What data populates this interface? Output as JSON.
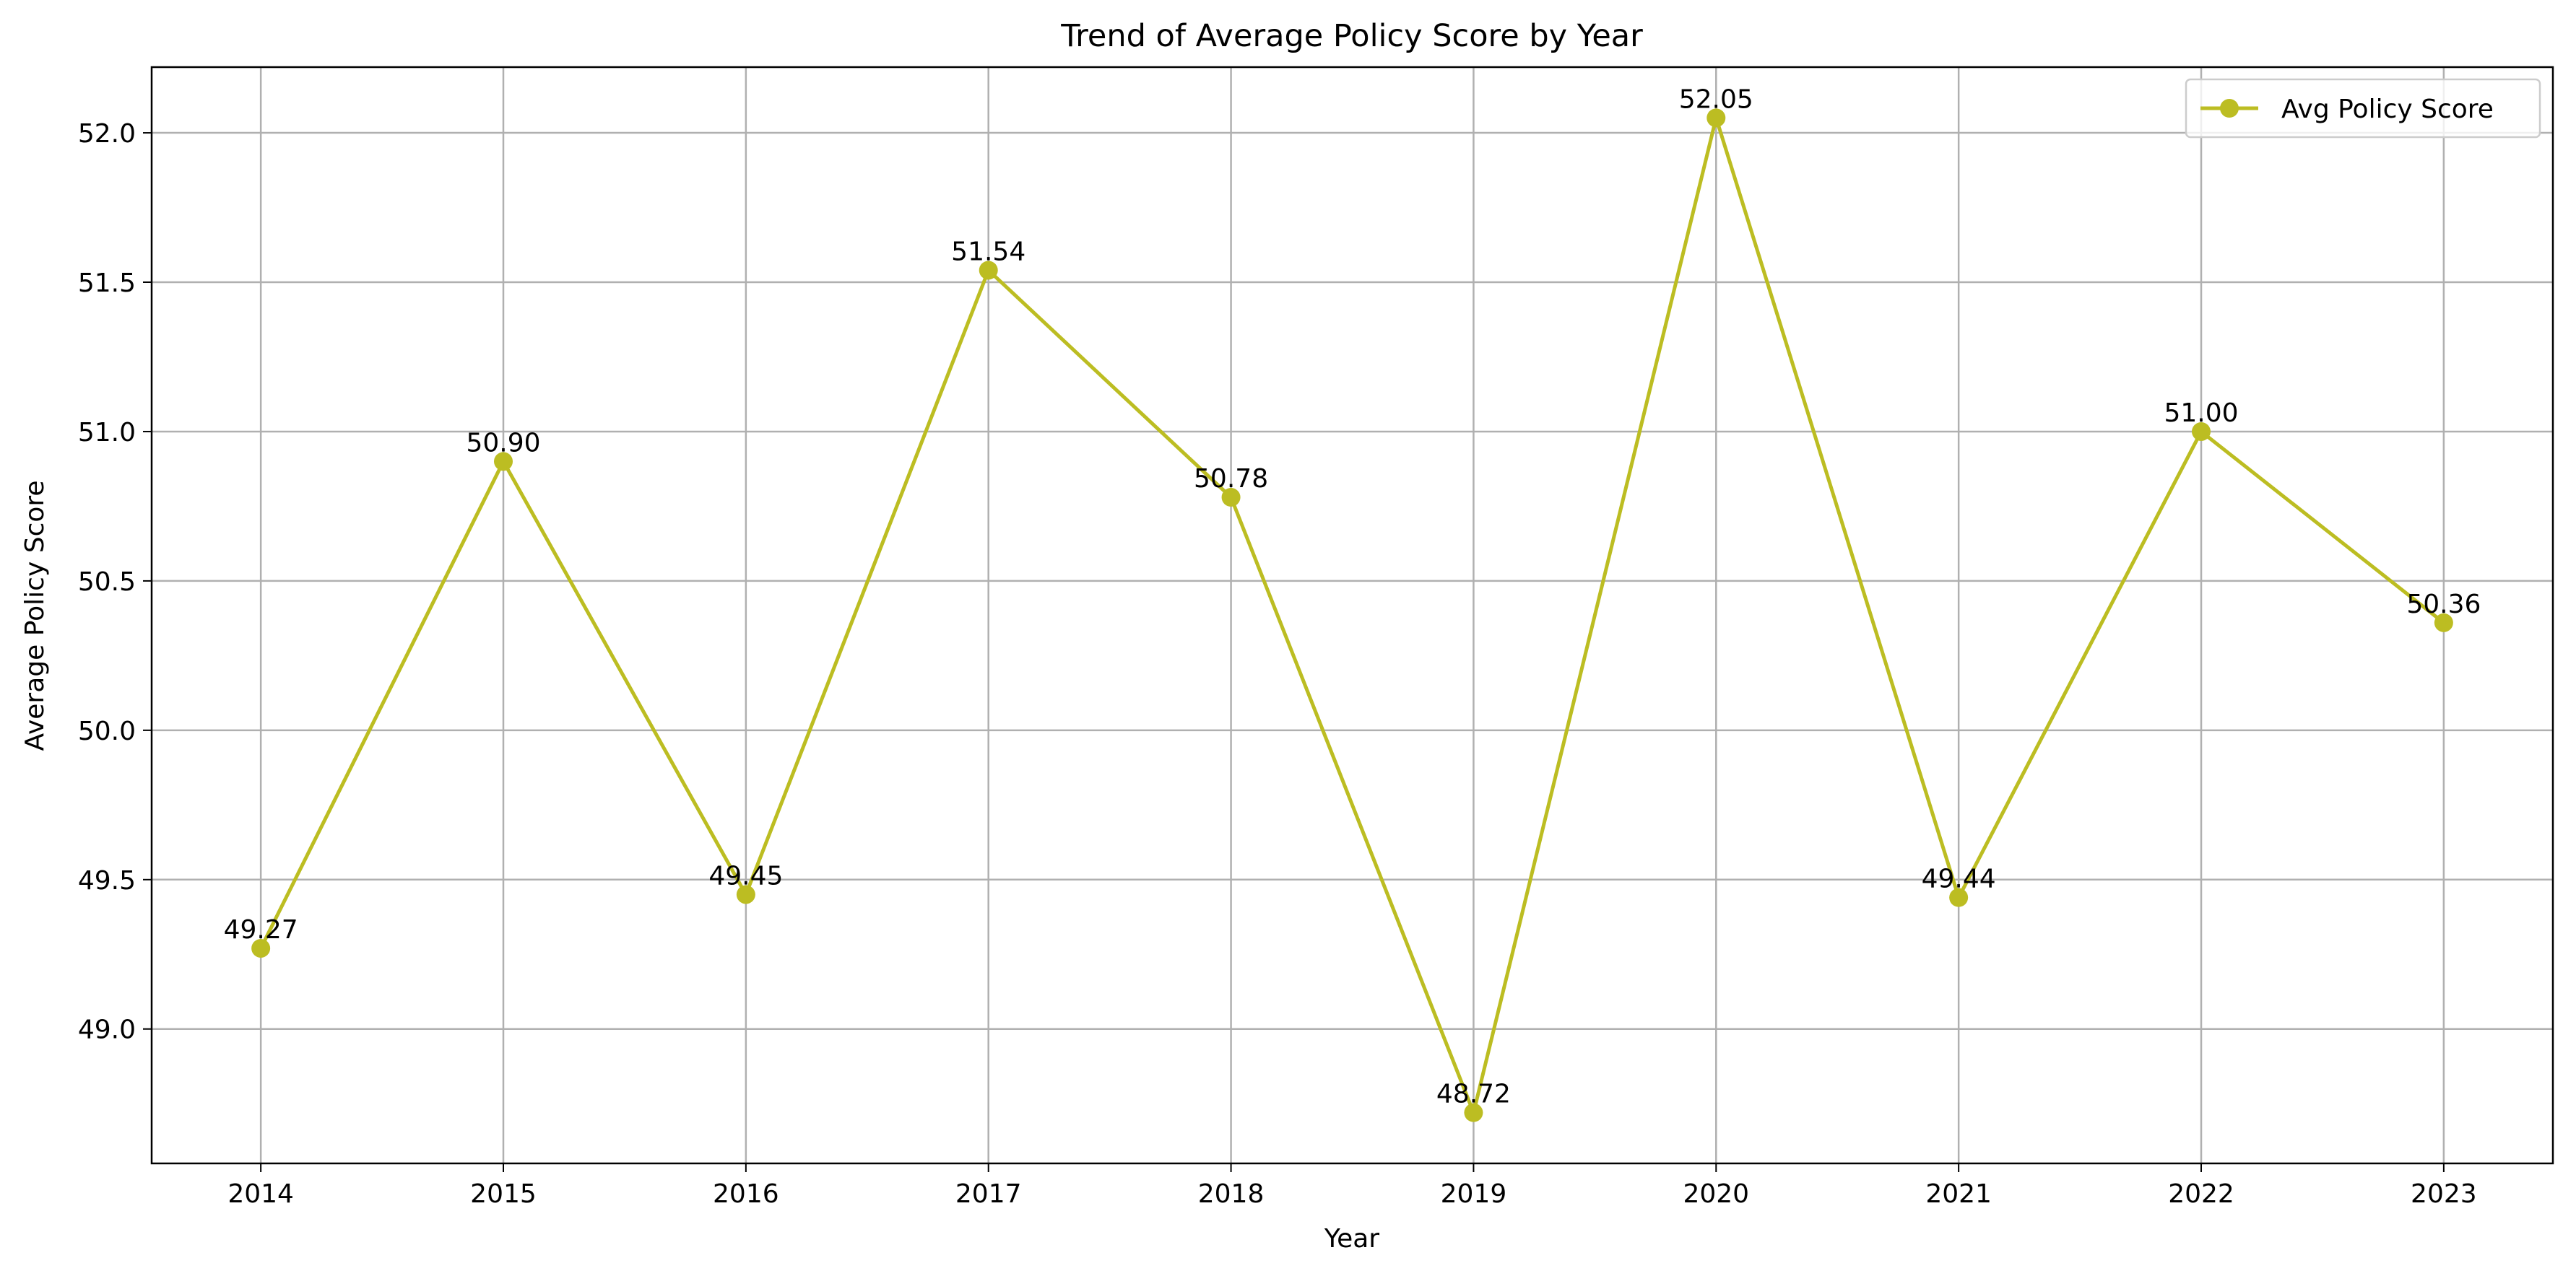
{
  "chart_data": {
    "type": "line",
    "title": "Trend of Average Policy Score by Year",
    "xlabel": "Year",
    "ylabel": "Average Policy Score",
    "x": [
      2014,
      2015,
      2016,
      2017,
      2018,
      2019,
      2020,
      2021,
      2022,
      2023
    ],
    "x_tick_labels": [
      "2014",
      "2015",
      "2016",
      "2017",
      "2018",
      "2019",
      "2020",
      "2021",
      "2022",
      "2023"
    ],
    "y_ticks": [
      49.0,
      49.5,
      50.0,
      50.5,
      51.0,
      51.5,
      52.0
    ],
    "y_tick_labels": [
      "49.0",
      "49.5",
      "50.0",
      "50.5",
      "51.0",
      "51.5",
      "52.0"
    ],
    "xlim": [
      2013.55,
      2023.45
    ],
    "ylim": [
      48.55,
      52.22
    ],
    "grid": true,
    "legend_position": "top-right",
    "series": [
      {
        "name": "Avg Policy Score",
        "color": "#bcbd22",
        "marker": "circle",
        "values": [
          49.27,
          50.9,
          49.45,
          51.54,
          50.78,
          48.72,
          52.05,
          49.44,
          51.0,
          50.36
        ],
        "data_labels": [
          "49.27",
          "50.90",
          "49.45",
          "51.54",
          "50.78",
          "48.72",
          "52.05",
          "49.44",
          "51.00",
          "50.36"
        ]
      }
    ]
  }
}
